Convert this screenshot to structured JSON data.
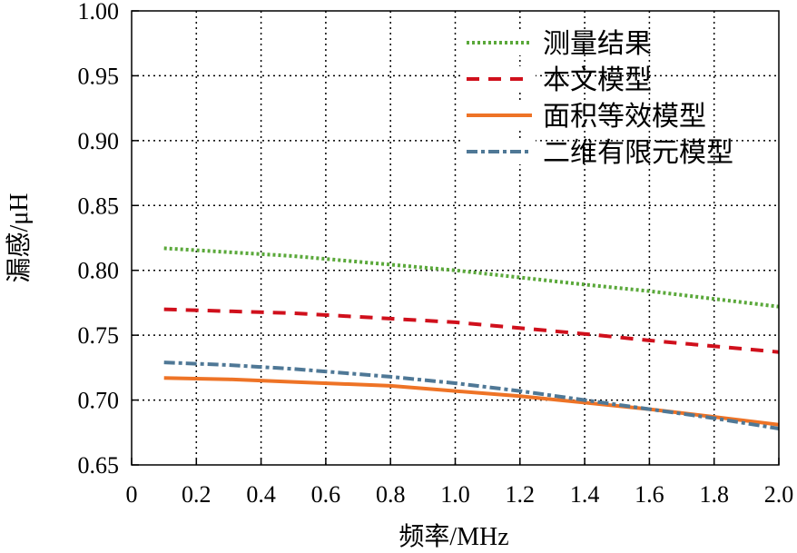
{
  "chart_data": {
    "type": "line",
    "xlabel": "频率/MHz",
    "ylabel": "漏感/μH",
    "xlim": [
      0,
      2.0
    ],
    "ylim": [
      0.65,
      1.0
    ],
    "xticks": [
      "0",
      "0.2",
      "0.4",
      "0.6",
      "0.8",
      "1.0",
      "1.2",
      "1.4",
      "1.6",
      "1.8",
      "2.0"
    ],
    "yticks": [
      "0.65",
      "0.70",
      "0.75",
      "0.80",
      "0.85",
      "0.90",
      "0.95",
      "1.00"
    ],
    "grid": true,
    "legend_position": "top-right",
    "series": [
      {
        "name": "测量结果",
        "color": "#5aa83a",
        "style": "dotted",
        "x": [
          0.1,
          0.5,
          1.0,
          1.4,
          1.6,
          2.0
        ],
        "y": [
          0.817,
          0.811,
          0.8,
          0.789,
          0.784,
          0.772
        ]
      },
      {
        "name": "本文模型",
        "color": "#d0101c",
        "style": "dashed",
        "x": [
          0.1,
          0.5,
          1.0,
          1.4,
          1.6,
          2.0
        ],
        "y": [
          0.77,
          0.767,
          0.76,
          0.751,
          0.746,
          0.737
        ]
      },
      {
        "name": "面积等效模型",
        "color": "#ee7326",
        "style": "solid",
        "x": [
          0.1,
          0.3,
          0.5,
          0.8,
          1.0,
          1.2,
          1.4,
          1.6,
          1.8,
          2.0
        ],
        "y": [
          0.717,
          0.716,
          0.714,
          0.711,
          0.707,
          0.703,
          0.698,
          0.693,
          0.687,
          0.681
        ]
      },
      {
        "name": "二维有限元模型",
        "color": "#4f7896",
        "style": "dashdot",
        "x": [
          0.1,
          0.3,
          0.5,
          0.8,
          1.0,
          1.2,
          1.4,
          1.6,
          1.8,
          2.0
        ],
        "y": [
          0.729,
          0.727,
          0.724,
          0.718,
          0.713,
          0.707,
          0.7,
          0.693,
          0.686,
          0.678
        ]
      }
    ]
  }
}
